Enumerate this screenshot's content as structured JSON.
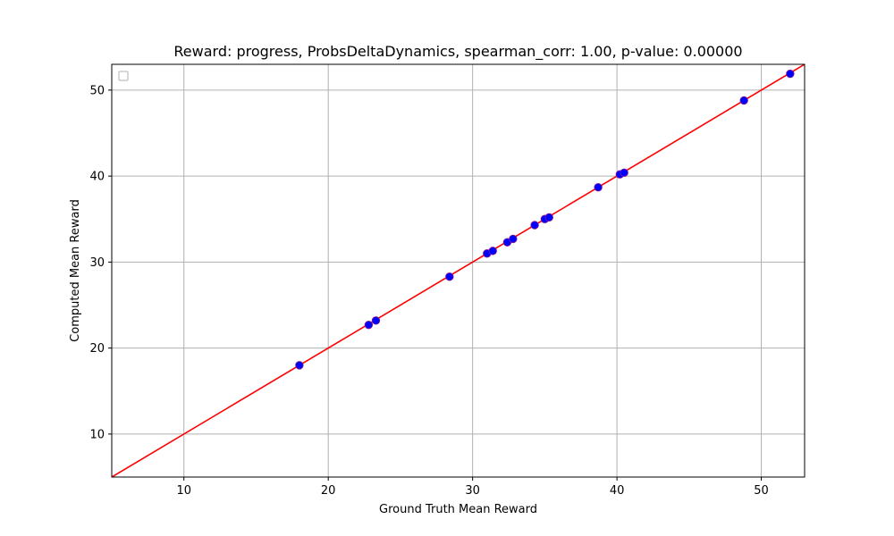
{
  "chart_data": {
    "type": "scatter",
    "title": "Reward: progress, ProbsDeltaDynamics, spearman_corr: 1.00, p-value: 0.00000",
    "xlabel": "Ground Truth Mean Reward",
    "ylabel": "Computed Mean Reward",
    "xlim": [
      5,
      53
    ],
    "ylim": [
      5,
      53
    ],
    "xticks": [
      "10",
      "20",
      "30",
      "40",
      "50"
    ],
    "yticks": [
      "10",
      "20",
      "30",
      "40",
      "50"
    ],
    "grid": true,
    "legend": "top-left (empty)",
    "point_color": "#0000ff",
    "point_edge_color": "#8b1a8b",
    "line_color": "#ff0000",
    "reference_line": {
      "type": "y=x"
    },
    "points": [
      {
        "x": 18.0,
        "y": 18.0
      },
      {
        "x": 22.8,
        "y": 22.7
      },
      {
        "x": 23.3,
        "y": 23.2
      },
      {
        "x": 28.4,
        "y": 28.3
      },
      {
        "x": 31.0,
        "y": 31.0
      },
      {
        "x": 31.4,
        "y": 31.3
      },
      {
        "x": 32.4,
        "y": 32.3
      },
      {
        "x": 32.8,
        "y": 32.7
      },
      {
        "x": 34.3,
        "y": 34.3
      },
      {
        "x": 35.0,
        "y": 35.0
      },
      {
        "x": 35.3,
        "y": 35.2
      },
      {
        "x": 38.7,
        "y": 38.7
      },
      {
        "x": 40.2,
        "y": 40.2
      },
      {
        "x": 40.5,
        "y": 40.4
      },
      {
        "x": 48.8,
        "y": 48.8
      },
      {
        "x": 52.0,
        "y": 51.9
      }
    ]
  }
}
